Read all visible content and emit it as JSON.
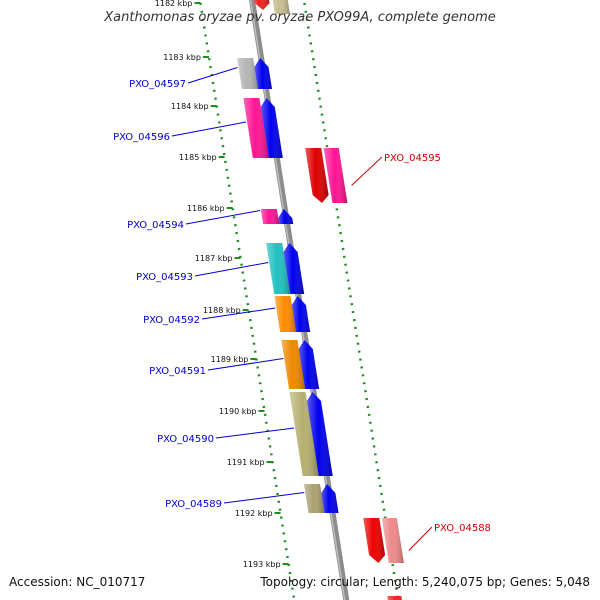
{
  "title": "Xanthomonas oryzae pv. oryzae PXO99A, complete genome",
  "footer": {
    "accession": "Accession: NC_010717",
    "summary": "Topology: circular; Length: 5,240,075 bp; Genes: 5,048"
  },
  "colors": {
    "backbone": "#8c8c8c",
    "ruler": "#228b22",
    "forward_label": "#0000cc",
    "reverse_label": "#cc0000",
    "strand_arrow": "#0000ee"
  },
  "kbp_ticks": [
    "1182 kbp",
    "1183 kbp",
    "1184 kbp",
    "1185 kbp",
    "1186 kbp",
    "1187 kbp",
    "1188 kbp",
    "1189 kbp",
    "1190 kbp",
    "1191 kbp",
    "1192 kbp",
    "1193 kbp"
  ],
  "genes": [
    {
      "id": "PXO_04597",
      "strand": "forward",
      "color": "#b5b5b5"
    },
    {
      "id": "PXO_04596",
      "strand": "forward",
      "color": "#ff1493"
    },
    {
      "id": "PXO_04595",
      "strand": "reverse",
      "color": "#dd0000"
    },
    {
      "id": "PXO_04594",
      "strand": "forward",
      "color": "#ff1493"
    },
    {
      "id": "PXO_04593",
      "strand": "forward",
      "color": "#20c0c0"
    },
    {
      "id": "PXO_04592",
      "strand": "forward",
      "color": "#ff8c00"
    },
    {
      "id": "PXO_04591",
      "strand": "forward",
      "color": "#ee8800"
    },
    {
      "id": "PXO_04590",
      "strand": "forward",
      "color": "#b5b070"
    },
    {
      "id": "PXO_04589",
      "strand": "forward",
      "color": "#aaa070"
    },
    {
      "id": "PXO_04588",
      "strand": "reverse",
      "color": "#ee0000"
    }
  ]
}
